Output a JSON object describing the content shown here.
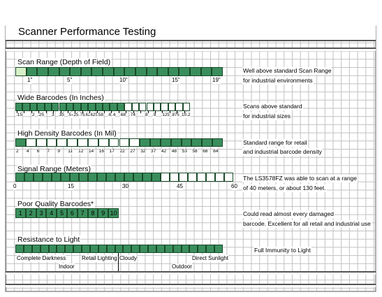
{
  "page": {
    "title": "Scanner Performance Testing",
    "colors": {
      "filled": "#3a8e5c",
      "light": "#d8f0c8",
      "empty": "#ffffff",
      "grid": "#c2c2c2",
      "frame": "#555555"
    }
  },
  "chart_data": [
    {
      "type": "bar",
      "title": "Scan Range (Depth of Field)",
      "tick_labels": [
        "1\"",
        "5\"",
        "10\"",
        "15\"",
        "19\""
      ],
      "segments_total": 19,
      "filled_range": [
        2,
        19
      ],
      "light_segments": [
        1
      ],
      "note": [
        "Well above standard Scan Range",
        "for industrial environments"
      ]
    },
    {
      "type": "bar",
      "title": "Wide Barcodes (In Inches)",
      "tick_labels": [
        ".15",
        "2",
        ".25",
        "3",
        ".35",
        ".4",
        ".5",
        ".25",
        ".75",
        ".625",
        ".625",
        ".58",
        ".6",
        ".4",
        ".68",
        ".74",
        "8",
        ".9",
        ".5",
        ".125",
        ".875",
        "10.2"
      ],
      "segments_total": 24,
      "filled_count": 15,
      "note": [
        "Scans above standard",
        "for industrial sizes"
      ]
    },
    {
      "type": "bar",
      "title": "High Density Barcodes (In Mil)",
      "tick_labels": [
        "2",
        "4",
        "6",
        "7",
        "9",
        "11",
        "12",
        "14",
        "16",
        "17",
        "22",
        "27",
        "32",
        "37",
        "42",
        "48",
        "53",
        "58",
        "68",
        "84"
      ],
      "segments_total": 20,
      "empty_segments": [
        2,
        3,
        4,
        5,
        6,
        7,
        8,
        9,
        10,
        11,
        12
      ],
      "note": [
        "Standard range for retail",
        "and industrial barcode density"
      ]
    },
    {
      "type": "bar",
      "title": "Signal Range (Meters)",
      "tick_labels": [
        "0",
        "15",
        "30",
        "45",
        "60"
      ],
      "xlim": [
        0,
        60
      ],
      "value": 40,
      "note": [
        "The LS3578FZ was able to scan at a range",
        "of 40 meters, or about 130 feet."
      ]
    },
    {
      "type": "bar",
      "title": "Poor Quality Barcodes*",
      "categories": [
        "1",
        "2",
        "3",
        "4",
        "5",
        "6",
        "7",
        "8",
        "9",
        "10"
      ],
      "filled_count": 10,
      "note": [
        "Could read almost every damaged",
        "barcode. Excellent for all retail and industrial use"
      ]
    },
    {
      "type": "bar",
      "title": "Resistance to Light",
      "tick_labels": [
        "Complete Darkness",
        "Indoor",
        "Retail Lighting",
        "Cloudy",
        "Outdoor",
        "Direct Sunlight"
      ],
      "fill_fraction": 1.0,
      "note": [
        "Full Immunity to Light"
      ]
    }
  ]
}
